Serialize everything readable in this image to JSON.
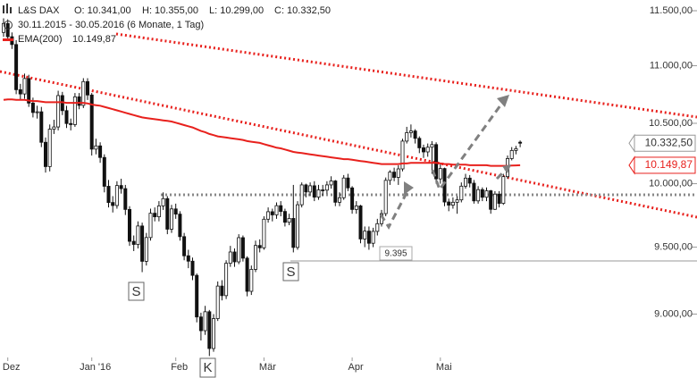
{
  "chart_data": {
    "type": "candlestick",
    "title": "L&S DAX",
    "ohlc_labels": [
      "O: 10.341,00",
      "H: 10.355,00",
      "L: 10.299,00",
      "C: 10.332,50"
    ],
    "subtitle": "30.11.2015 - 30.05.2016 (6 Monate, 1 Tag)",
    "last_label": "10.332,50",
    "categories": [
      null,
      "Dez",
      null,
      null,
      null,
      null,
      null,
      null,
      null,
      null,
      null,
      null,
      null,
      null,
      null,
      null,
      null,
      null,
      null,
      null,
      null,
      "Jan '16",
      null,
      null,
      null,
      null,
      null,
      null,
      null,
      null,
      null,
      null,
      null,
      null,
      null,
      null,
      null,
      null,
      null,
      null,
      null,
      "Feb",
      null,
      null,
      null,
      null,
      null,
      null,
      null,
      null,
      null,
      null,
      null,
      null,
      null,
      null,
      null,
      null,
      null,
      null,
      null,
      null,
      "Mär",
      null,
      null,
      null,
      null,
      null,
      null,
      null,
      null,
      null,
      null,
      null,
      null,
      null,
      null,
      null,
      null,
      null,
      null,
      null,
      null,
      "Apr",
      null,
      null,
      null,
      null,
      null,
      null,
      null,
      null,
      null,
      null,
      null,
      null,
      null,
      null,
      null,
      null,
      null,
      null,
      null,
      null,
      "Mai",
      null,
      null,
      null,
      null,
      null,
      null,
      null,
      null,
      null,
      null,
      null,
      null,
      null,
      null,
      null,
      null,
      null,
      null,
      null
    ],
    "open": [
      11300,
      11382,
      11261,
      11190,
      10789,
      10752,
      10887,
      10673,
      10592,
      10598,
      10340,
      10139,
      10450,
      10469,
      10738,
      10608,
      10498,
      10489,
      10727,
      10653,
      10860,
      10743,
      10283,
      10310,
      10214,
      9979,
      9849,
      9825,
      9985,
      9960,
      9794,
      9545,
      9521,
      9664,
      9392,
      9574,
      9764,
      9736,
      9822,
      9880,
      9639,
      9798,
      9757,
      9581,
      9434,
      9393,
      9286,
      8979,
      8880,
      9017,
      8753,
      8967,
      9206,
      9135,
      9377,
      9463,
      9388,
      9573,
      9416,
      9167,
      9331,
      9513,
      9495,
      9717,
      9776,
      9751,
      9824,
      9778,
      9693,
      9723,
      9498,
      9831,
      9990,
      9933,
      9983,
      9892,
      9950,
      9948,
      9990,
      10022,
      9851,
      9887,
      10046,
      9966,
      9794,
      9822,
      9563,
      9624,
      9530,
      9622,
      9682,
      9761,
      10027,
      10094,
      10051,
      10120,
      10350,
      10421,
      10435,
      10373,
      10294,
      10260,
      10299,
      10321,
      10039,
      10123,
      9853,
      9828,
      9851,
      9870,
      9980,
      10045,
      10004,
      9862,
      9952,
      9891,
      9943,
      9795,
      9916,
      9842,
      10057,
      10205,
      10272,
      10341
    ],
    "high": [
      11430,
      11420,
      11300,
      11230,
      10840,
      10930,
      10920,
      10720,
      10650,
      10640,
      10380,
      10490,
      10530,
      10780,
      10770,
      10650,
      10540,
      10760,
      10760,
      10890,
      10890,
      10760,
      10370,
      10340,
      10240,
      10030,
      9900,
      10020,
      10040,
      9990,
      9820,
      9590,
      9700,
      9690,
      9610,
      9800,
      9810,
      9860,
      9930,
      9900,
      9830,
      9840,
      9780,
      9610,
      9480,
      9420,
      9300,
      9010,
      9060,
      9030,
      9000,
      9240,
      9250,
      9400,
      9510,
      9490,
      9600,
      9590,
      9430,
      9360,
      9550,
      9560,
      9740,
      9810,
      9800,
      9850,
      9860,
      9800,
      9760,
      9990,
      9860,
      10010,
      10000,
      10010,
      10020,
      9990,
      9990,
      10020,
      10060,
      10030,
      9930,
      10070,
      10080,
      9980,
      9860,
      9830,
      9660,
      9660,
      9650,
      9720,
      9790,
      10050,
      10110,
      10130,
      10150,
      10370,
      10470,
      10490,
      10450,
      10390,
      10320,
      10330,
      10350,
      10340,
      10160,
      10130,
      9880,
      9890,
      9900,
      10010,
      10080,
      10070,
      10030,
      9980,
      9970,
      9970,
      9950,
      9940,
      9940,
      10080,
      10230,
      10300,
      10310,
      10355
    ],
    "low": [
      11260,
      11230,
      11150,
      10750,
      10700,
      10710,
      10640,
      10550,
      10540,
      10300,
      10090,
      10100,
      10410,
      10440,
      10570,
      10460,
      10440,
      10470,
      10620,
      10630,
      10700,
      10230,
      10240,
      10170,
      9930,
      9810,
      9770,
      9800,
      9920,
      9750,
      9510,
      9470,
      9490,
      9310,
      9360,
      9550,
      9700,
      9700,
      9790,
      9600,
      9610,
      9720,
      9550,
      9400,
      9340,
      9250,
      8940,
      8810,
      8850,
      8700,
      8730,
      8950,
      9100,
      9110,
      9350,
      9350,
      9370,
      9390,
      9130,
      9140,
      9310,
      9460,
      9480,
      9690,
      9700,
      9720,
      9740,
      9660,
      9670,
      9460,
      9480,
      9810,
      9890,
      9900,
      9860,
      9870,
      9900,
      9920,
      9960,
      9820,
      9820,
      9870,
      9940,
      9760,
      9760,
      9530,
      9500,
      9480,
      9500,
      9590,
      9660,
      9740,
      9990,
      10020,
      9990,
      10100,
      10330,
      10380,
      10330,
      10250,
      10210,
      10220,
      10080,
      10000,
      10000,
      9820,
      9780,
      9800,
      9760,
      9850,
      9960,
      9970,
      9840,
      9840,
      9860,
      9860,
      9760,
      9790,
      9810,
      9830,
      10040,
      10190,
      10240,
      10299
    ],
    "close": [
      11382,
      11261,
      11190,
      10789,
      10752,
      10887,
      10673,
      10592,
      10598,
      10340,
      10139,
      10450,
      10469,
      10738,
      10608,
      10498,
      10489,
      10727,
      10653,
      10860,
      10743,
      10283,
      10310,
      10214,
      9979,
      9849,
      9825,
      9985,
      9960,
      9794,
      9545,
      9521,
      9664,
      9392,
      9574,
      9764,
      9736,
      9822,
      9880,
      9639,
      9798,
      9757,
      9581,
      9434,
      9393,
      9286,
      8979,
      8880,
      9017,
      8753,
      8967,
      9206,
      9135,
      9377,
      9463,
      9388,
      9573,
      9416,
      9167,
      9331,
      9513,
      9495,
      9717,
      9776,
      9751,
      9824,
      9778,
      9693,
      9723,
      9498,
      9831,
      9990,
      9933,
      9983,
      9892,
      9950,
      9948,
      9990,
      10022,
      9851,
      9887,
      10046,
      9966,
      9794,
      9822,
      9563,
      9624,
      9530,
      9622,
      9682,
      9761,
      10027,
      10094,
      10051,
      10120,
      10350,
      10421,
      10435,
      10373,
      10294,
      10260,
      10299,
      10321,
      10039,
      10123,
      9853,
      9828,
      9851,
      9870,
      9980,
      10045,
      10004,
      9862,
      9952,
      9891,
      9943,
      9795,
      9916,
      9842,
      10057,
      10205,
      10272,
      10287,
      10332.5
    ],
    "up_color": "#ffffff",
    "down_color": "#111111",
    "ema": {
      "name": "EMA(200)",
      "color": "#e8211d",
      "last_label": "10.149,87",
      "values": [
        10700,
        10705,
        10705,
        10700,
        10700,
        10700,
        10695,
        10690,
        10690,
        10685,
        10680,
        10680,
        10680,
        10680,
        10680,
        10675,
        10675,
        10675,
        10675,
        10675,
        10670,
        10660,
        10655,
        10650,
        10640,
        10630,
        10620,
        10610,
        10600,
        10590,
        10580,
        10570,
        10560,
        10550,
        10545,
        10540,
        10535,
        10530,
        10525,
        10520,
        10515,
        10505,
        10495,
        10485,
        10475,
        10465,
        10450,
        10435,
        10425,
        10410,
        10400,
        10390,
        10385,
        10380,
        10375,
        10370,
        10365,
        10360,
        10350,
        10345,
        10340,
        10335,
        10325,
        10315,
        10305,
        10295,
        10290,
        10280,
        10270,
        10260,
        10255,
        10250,
        10245,
        10240,
        10235,
        10230,
        10225,
        10220,
        10215,
        10210,
        10205,
        10200,
        10200,
        10195,
        10190,
        10185,
        10180,
        10175,
        10170,
        10165,
        10160,
        10160,
        10160,
        10160,
        10160,
        10165,
        10165,
        10170,
        10170,
        10170,
        10170,
        10170,
        10170,
        10170,
        10165,
        10160,
        10160,
        10155,
        10155,
        10155,
        10155,
        10150,
        10150,
        10150,
        10150,
        10150,
        10145,
        10145,
        10145,
        10145,
        10145,
        10148,
        10149,
        10149.87
      ]
    },
    "annotations": [
      "S",
      "S",
      "K",
      "9.395"
    ],
    "log": true,
    "ylim": [
      8690,
      11600
    ],
    "yticks": [
      {
        "value": 9000,
        "label": "9.000,00"
      },
      {
        "value": 9500,
        "label": "9.500,00"
      },
      {
        "value": 10000,
        "label": "10.000,00"
      },
      {
        "value": 10500,
        "label": "10.500,00"
      },
      {
        "value": 11000,
        "label": "11.000,00"
      },
      {
        "value": 11500,
        "label": "11.500,00"
      }
    ]
  }
}
